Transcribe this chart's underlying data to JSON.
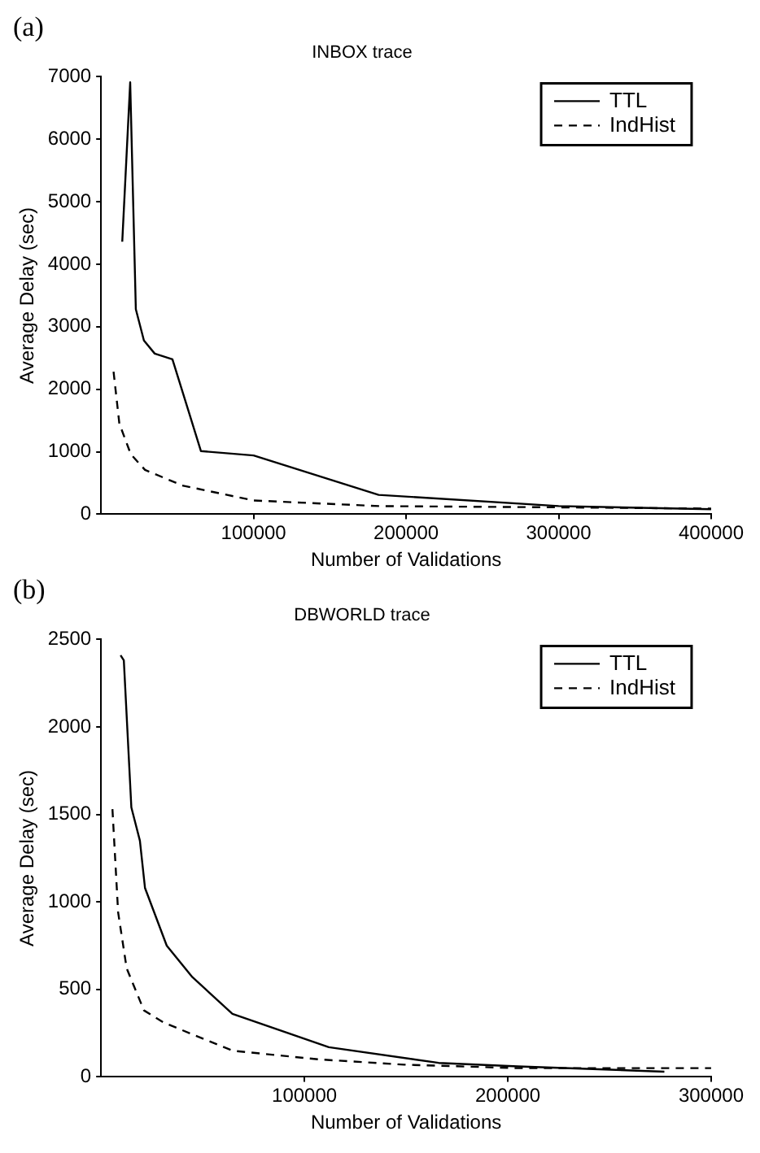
{
  "chart_data": [
    {
      "type": "line",
      "title": "INBOX trace",
      "xlabel": "Number of Validations",
      "ylabel": "Average Delay (sec)",
      "annotations": [
        "(a)"
      ],
      "xlim": [
        0,
        400000
      ],
      "xticks": [
        100000,
        200000,
        300000,
        400000
      ],
      "ylim": [
        0,
        7000
      ],
      "yticks": [
        0,
        1000,
        2000,
        3000,
        4000,
        5000,
        6000,
        7000
      ],
      "grid": false,
      "legend": "top right",
      "marker": "none",
      "series": [
        {
          "name": "TTL",
          "color": "#000000",
          "line_style": "solid",
          "x": [
            13900,
            19100,
            22800,
            28100,
            35200,
            46800,
            65500,
            100000,
            182000,
            300000,
            400000
          ],
          "values": [
            4360,
            6910,
            3280,
            2780,
            2570,
            2480,
            1010,
            940,
            310,
            130,
            80
          ]
        },
        {
          "name": "IndHist",
          "color": "#000000",
          "line_style": "dashed",
          "x": [
            8200,
            12000,
            19500,
            28800,
            53200,
            100000,
            182000,
            300000,
            400000
          ],
          "values": [
            2280,
            1450,
            960,
            710,
            460,
            220,
            130,
            110,
            90
          ]
        }
      ]
    },
    {
      "type": "line",
      "title": "DBWORLD trace",
      "xlabel": "Number of Validations",
      "ylabel": "Average Delay (sec)",
      "annotations": [
        "(b)"
      ],
      "xlim": [
        0,
        300000
      ],
      "xticks": [
        100000,
        200000,
        300000
      ],
      "ylim": [
        0,
        2500
      ],
      "yticks": [
        0,
        500,
        1000,
        1500,
        2000,
        2500
      ],
      "grid": false,
      "legend": "top right",
      "marker": "none",
      "series": [
        {
          "name": "TTL",
          "color": "#000000",
          "line_style": "solid",
          "x": [
            9600,
            11200,
            14900,
            19100,
            21600,
            32300,
            44900,
            64600,
            112000,
            166000,
            205000,
            277000
          ],
          "values": [
            2410,
            2380,
            1540,
            1350,
            1080,
            750,
            570,
            360,
            170,
            80,
            60,
            30
          ]
        },
        {
          "name": "IndHist",
          "color": "#000000",
          "line_style": "dashed",
          "x": [
            5600,
            8400,
            12600,
            21100,
            30900,
            64600,
            107000,
            149000,
            205000,
            300000
          ],
          "values": [
            1530,
            940,
            620,
            380,
            310,
            150,
            100,
            70,
            50,
            50
          ]
        }
      ]
    }
  ]
}
